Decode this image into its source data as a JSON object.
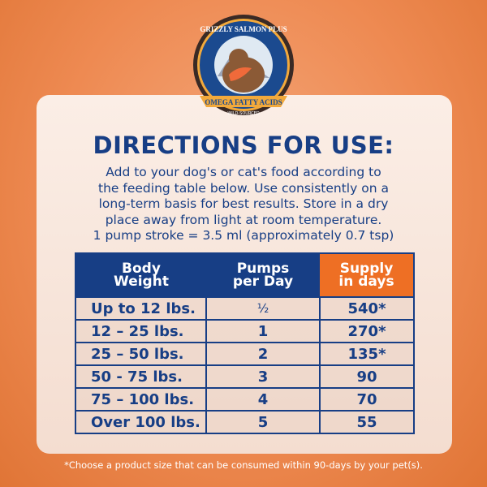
{
  "logo": {
    "brand": "GRIZZLY SALMON PLUS",
    "banner": "OMEGA FATTY ACIDS",
    "sub": "WILD-SOURCED"
  },
  "title": "DIRECTIONS FOR USE:",
  "body_lines": [
    "Add to your dog's or cat's food according to",
    "the feeding table below. Use consistently on a",
    "long-term basis for best results. Store in a dry",
    "place away from light at room temperature.",
    "1 pump stroke = 3.5 ml (approximately 0.7 tsp)"
  ],
  "table": {
    "headers": [
      [
        "Body",
        "Weight"
      ],
      [
        "Pumps",
        "per Day"
      ],
      [
        "Supply",
        "in days"
      ]
    ],
    "rows": [
      [
        "Up to 12 lbs.",
        "½",
        "540*"
      ],
      [
        "12 – 25 lbs.",
        "1",
        "270*"
      ],
      [
        "25 – 50 lbs.",
        "2",
        "135*"
      ],
      [
        "50 - 75 lbs.",
        "3",
        "90"
      ],
      [
        "75 – 100 lbs.",
        "4",
        "70"
      ],
      [
        "Over 100 lbs.",
        "5",
        "55"
      ]
    ]
  },
  "footnote": "*Choose a product size that can be consumed within 90-days by your pet(s).",
  "colors": {
    "navy": "#173e85",
    "orange": "#ee6f24"
  }
}
